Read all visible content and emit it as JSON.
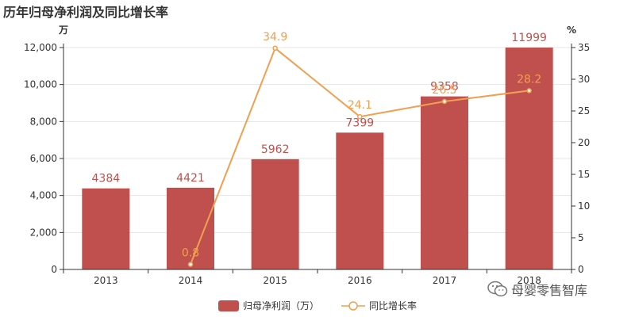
{
  "title": "历年归母净利润及同比增长率",
  "watermark": {
    "text": "母婴零售智库",
    "icon": "wechat-icon"
  },
  "colors": {
    "bar": "#c0504d",
    "line": "#f0a050",
    "bar_label": "#c0504d",
    "line_label": "#f0a050",
    "axis": "#333333",
    "grid": "#e4e4e4"
  },
  "legend": {
    "bar_label": "归母净利润（万）",
    "line_label": "同比增长率"
  },
  "chart_data": {
    "type": "bar",
    "categories": [
      "2013",
      "2014",
      "2015",
      "2016",
      "2017",
      "2018"
    ],
    "series": [
      {
        "name": "归母净利润（万）",
        "type": "bar",
        "axis": "left",
        "values": [
          4384,
          4421,
          5962,
          7399,
          9358,
          11999
        ],
        "labels": [
          "4384",
          "4421",
          "5962",
          "7399",
          "9358",
          "11999"
        ]
      },
      {
        "name": "同比增长率",
        "type": "line",
        "axis": "right",
        "values": [
          null,
          0.8,
          34.9,
          24.1,
          26.5,
          28.2
        ],
        "labels": [
          "",
          "0.8",
          "34.9",
          "24.1",
          "26.5",
          "28.2"
        ]
      }
    ],
    "y_left": {
      "label": "万",
      "ylim": [
        0,
        12000
      ],
      "ticks": [
        "0",
        "2,000",
        "4,000",
        "6,000",
        "8,000",
        "10,000",
        "12,000"
      ]
    },
    "y_right": {
      "label": "%",
      "ylim": [
        0,
        35
      ],
      "ticks": [
        "0",
        "5",
        "10",
        "15",
        "20",
        "25",
        "30",
        "35"
      ]
    },
    "grid": true,
    "legend_position": "bottom"
  }
}
